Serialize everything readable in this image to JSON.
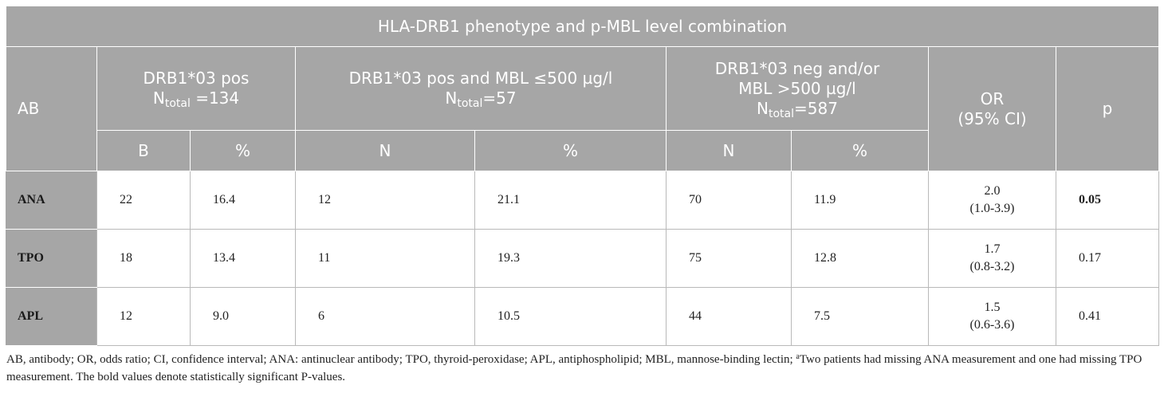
{
  "table": {
    "title": "HLA-DRB1 phenotype and p-MBL level combination",
    "ab_header": "AB",
    "groups": [
      {
        "line1": "DRB1*03 pos",
        "n_prefix": "N",
        "n_sub": "total",
        "n_suffix": " =134"
      },
      {
        "line1": "DRB1*03 pos and MBL ≤500 µg/l",
        "n_prefix": "N",
        "n_sub": "total",
        "n_suffix": "=57"
      },
      {
        "line1": "DRB1*03 neg and/or",
        "line2": "MBL >500 µg/l",
        "n_prefix": "N",
        "n_sub": "total",
        "n_suffix": "=587"
      }
    ],
    "or_header_line1": "OR",
    "or_header_line2": "(95% CI)",
    "p_header": "p",
    "subheaders": [
      "B",
      "%",
      "N",
      "%",
      "N",
      "%"
    ],
    "rows": [
      {
        "ab": "ANA",
        "c1": "22",
        "c2": "16.4",
        "c3": "12",
        "c4": "21.1",
        "c5": "70",
        "c6": "11.9",
        "or": "2.0",
        "ci": "(1.0-3.9)",
        "p": "0.05",
        "p_bold": true
      },
      {
        "ab": "TPO",
        "c1": "18",
        "c2": "13.4",
        "c3": "11",
        "c4": "19.3",
        "c5": "75",
        "c6": "12.8",
        "or": "1.7",
        "ci": "(0.8-3.2)",
        "p": "0.17",
        "p_bold": false
      },
      {
        "ab": "APL",
        "c1": "12",
        "c2": "9.0",
        "c3": "6",
        "c4": "10.5",
        "c5": "44",
        "c6": "7.5",
        "or": "1.5",
        "ci": "(0.6-3.6)",
        "p": "0.41",
        "p_bold": false
      }
    ]
  },
  "footnote": {
    "text_before": "AB, antibody; OR, odds ratio; CI, confidence interval; ANA: antinuclear antibody; TPO, thyroid-peroxidase; APL, antiphospholipid; MBL, mannose-binding lectin; ",
    "marker": "a",
    "text_after": "Two patients had missing ANA measurement and one had missing TPO measurement. The bold values denote statistically significant P-values."
  }
}
